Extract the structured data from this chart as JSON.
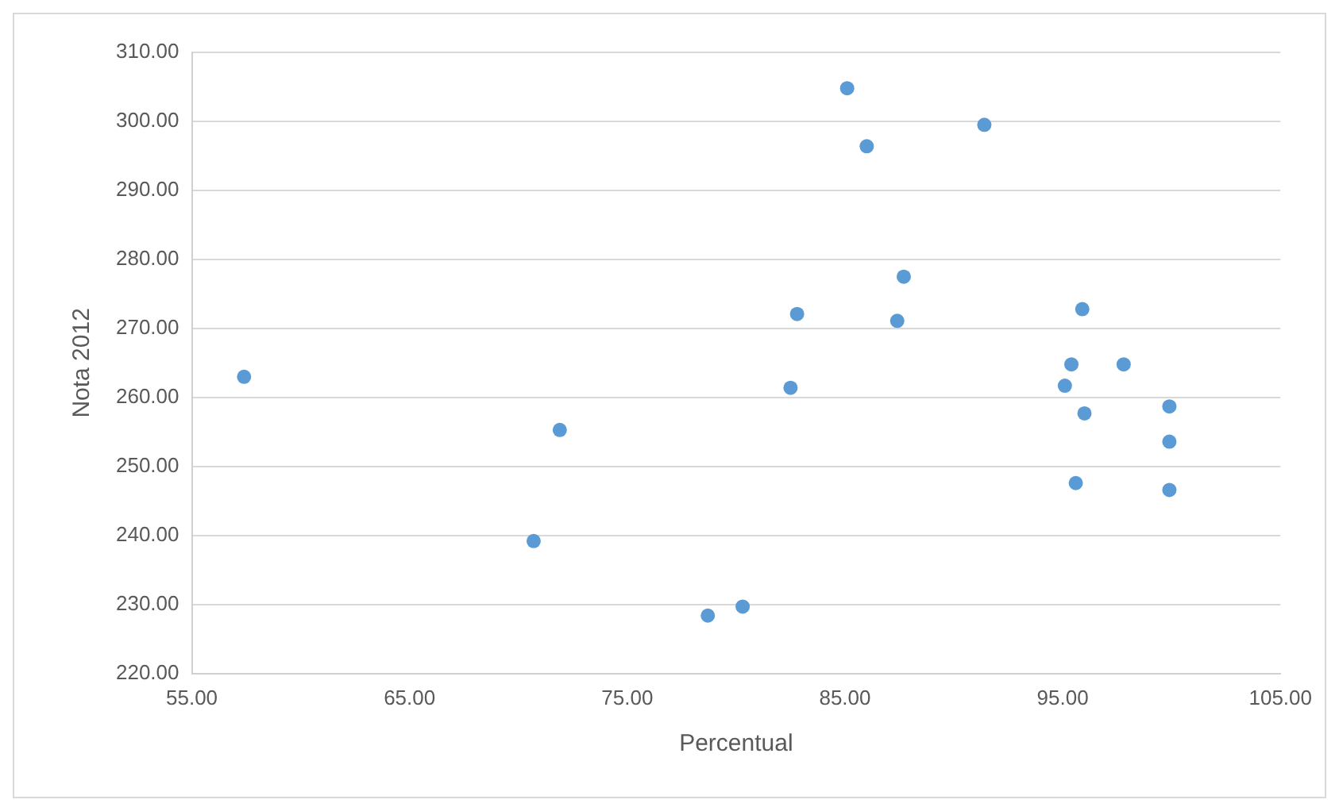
{
  "chart_data": {
    "type": "scatter",
    "xlabel": "Percentual",
    "ylabel": "Nota 2012",
    "series": [
      {
        "color": "#5b9bd5",
        "x": [
          57.4,
          71.9,
          70.7,
          85.1,
          86.0,
          91.4,
          87.7,
          82.8,
          87.4,
          82.5,
          95.9,
          95.4,
          97.8,
          95.1,
          96.0,
          99.9,
          99.9,
          95.6,
          99.9,
          78.7,
          80.3
        ],
        "values": [
          263.0,
          255.3,
          239.2,
          304.8,
          296.4,
          299.5,
          277.5,
          272.1,
          271.1,
          261.4,
          272.8,
          264.8,
          264.8,
          261.7,
          257.7,
          258.7,
          253.6,
          247.6,
          246.6,
          228.4,
          229.7
        ]
      }
    ],
    "xlim": [
      55,
      105
    ],
    "xticks": [
      {
        "value": 55,
        "label": "55.00"
      },
      {
        "value": 65,
        "label": "65.00"
      },
      {
        "value": 75,
        "label": "75.00"
      },
      {
        "value": 85,
        "label": "85.00"
      },
      {
        "value": 95,
        "label": "95.00"
      },
      {
        "value": 105,
        "label": "105.00"
      }
    ],
    "ylim": [
      220,
      310
    ],
    "yticks": [
      {
        "value": 220,
        "label": "220.00"
      },
      {
        "value": 230,
        "label": "230.00"
      },
      {
        "value": 240,
        "label": "240.00"
      },
      {
        "value": 250,
        "label": "250.00"
      },
      {
        "value": 260,
        "label": "260.00"
      },
      {
        "value": 270,
        "label": "270.00"
      },
      {
        "value": 280,
        "label": "280.00"
      },
      {
        "value": 290,
        "label": "290.00"
      },
      {
        "value": 300,
        "label": "300.00"
      },
      {
        "value": 310,
        "label": "310.00"
      }
    ],
    "grid": "y",
    "legend": false,
    "marker": "circle"
  }
}
